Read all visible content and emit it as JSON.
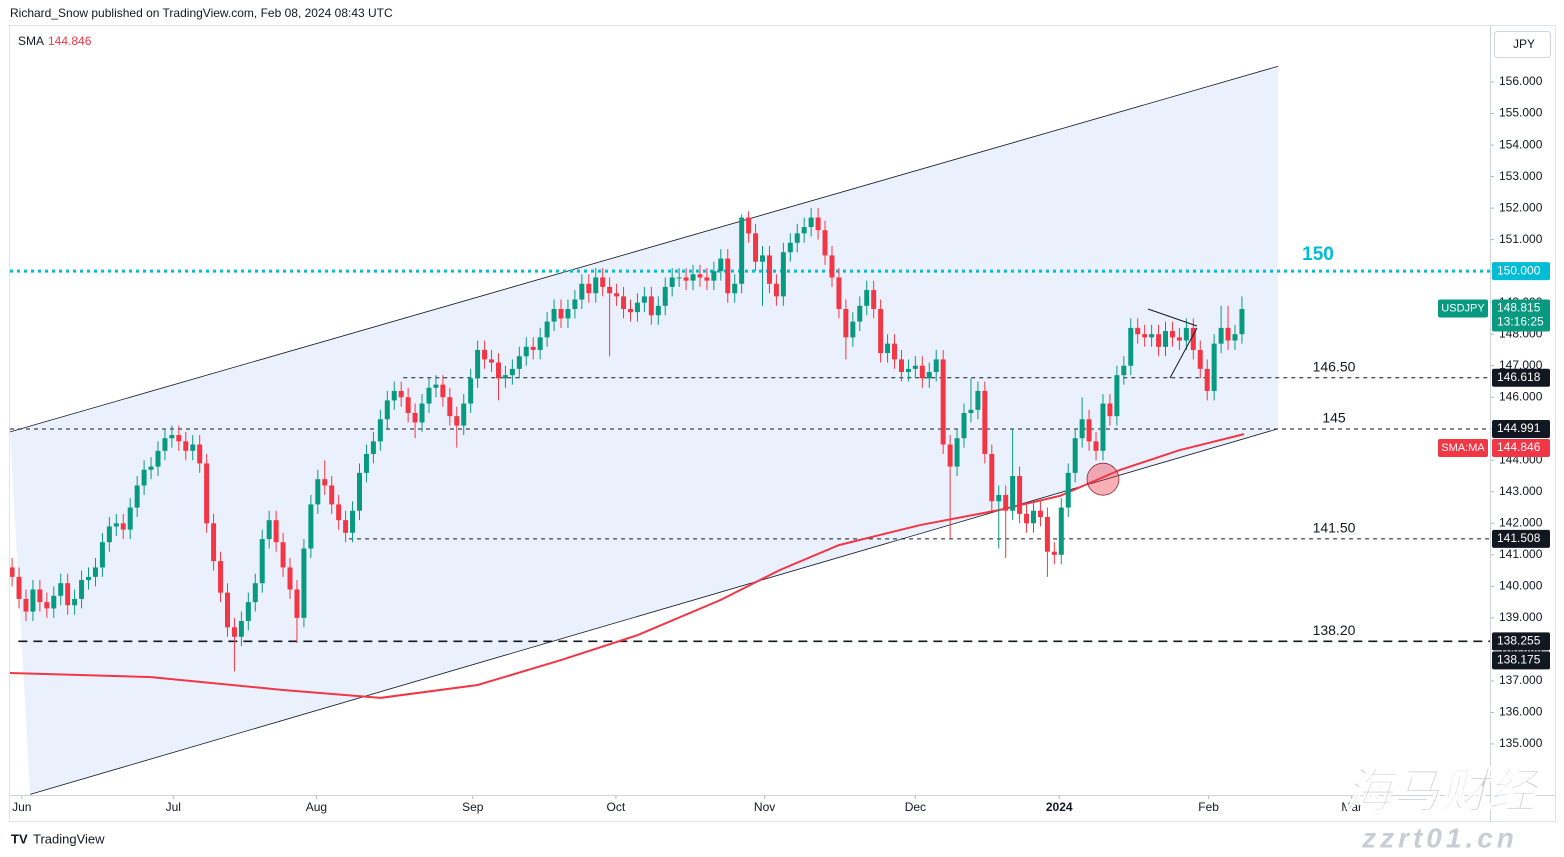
{
  "header": "Richard_Snow published on TradingView.com, Feb 08, 2024 08:43 UTC",
  "footer": {
    "logo": "TradingView"
  },
  "watermark": {
    "title": "海马财经",
    "url": "zzrt01.cn"
  },
  "chart_data": {
    "type": "candlestick",
    "symbol": "USDJPY",
    "currency": "JPY",
    "last_price": 148.815,
    "countdown": "13:16:25",
    "up_color": "#089981",
    "down_color": "#f23645",
    "indicator": {
      "name": "SMA",
      "value": 144.846,
      "axis_label": "SMA:MA",
      "color": "#f23645",
      "x": [
        -0.3,
        20,
        39,
        53,
        67,
        79,
        90,
        102,
        110.5,
        119,
        130.6,
        142,
        150.8,
        159.4,
        168,
        177.3
      ],
      "values": [
        137.25,
        137.12,
        136.71,
        136.46,
        136.87,
        137.66,
        138.45,
        139.57,
        140.52,
        141.31,
        141.94,
        142.42,
        142.87,
        143.69,
        144.32,
        144.83
      ]
    },
    "xlim": [
      -0.3,
      212.7
    ],
    "xticks": [
      {
        "value": 1.4,
        "label": "Jun"
      },
      {
        "value": 23.2,
        "label": "Jul"
      },
      {
        "value": 43.8,
        "label": "Aug"
      },
      {
        "value": 66.3,
        "label": "Sep"
      },
      {
        "value": 86.9,
        "label": "Oct"
      },
      {
        "value": 108.3,
        "label": "Nov"
      },
      {
        "value": 130,
        "label": "Dec"
      },
      {
        "value": 150.7,
        "label": "2024"
      },
      {
        "value": 172.2,
        "label": "Feb"
      },
      {
        "value": 192.8,
        "label": "Mar"
      }
    ],
    "ylim": [
      133.38,
      157.81
    ],
    "yticks": [
      {
        "value": 135,
        "label": "135.000"
      },
      {
        "value": 136,
        "label": "136.000"
      },
      {
        "value": 137,
        "label": "137.000"
      },
      {
        "value": 138,
        "label": "138.000"
      },
      {
        "value": 139,
        "label": "139.000"
      },
      {
        "value": 140,
        "label": "140.000"
      },
      {
        "value": 141,
        "label": "141.000"
      },
      {
        "value": 142,
        "label": "142.000"
      },
      {
        "value": 143,
        "label": "143.000"
      },
      {
        "value": 144,
        "label": "144.000"
      },
      {
        "value": 145,
        "label": "145.000"
      },
      {
        "value": 146,
        "label": "146.000"
      },
      {
        "value": 147,
        "label": "147.000"
      },
      {
        "value": 148,
        "label": "148.000"
      },
      {
        "value": 149,
        "label": "149.000"
      },
      {
        "value": 150,
        "label": "150.000"
      },
      {
        "value": 151,
        "label": "151.000"
      },
      {
        "value": 152,
        "label": "152.000"
      },
      {
        "value": 153,
        "label": "153.000"
      },
      {
        "value": 154,
        "label": "154.000"
      },
      {
        "value": 155,
        "label": "155.000"
      },
      {
        "value": 156,
        "label": "156.000"
      }
    ],
    "grid": false,
    "channel": {
      "upper": [
        [
          -0.3,
          144.9
        ],
        [
          182.2,
          156.5
        ]
      ],
      "lower": [
        [
          2.6,
          133.4
        ],
        [
          182.2,
          145.0
        ]
      ],
      "fill": "#ebf1fc",
      "color": "#131722"
    },
    "levels": [
      {
        "value": 150,
        "label": "150",
        "axis_label": "150.000",
        "start": -0.3,
        "style": "dotted",
        "color": "#00bcd4"
      },
      {
        "value": 146.618,
        "label": "146.50",
        "start": 56.3,
        "style": "dashed",
        "color": "#131722"
      },
      {
        "value": 144.991,
        "label": "145",
        "start": -0.3,
        "style": "dashed",
        "color": "#131722"
      },
      {
        "value": 141.508,
        "label": "141.50",
        "start": 48.5,
        "style": "dashed",
        "color": "#131722"
      },
      {
        "value": 138.255,
        "label": "138.20",
        "start": 0.9,
        "style": "longdash",
        "color": "#131722"
      }
    ],
    "extra_axis_labels": [
      138.175
    ],
    "highlight": {
      "x": 157,
      "value": 143.4,
      "color": "#f23645"
    },
    "ohlc": [
      [
        140.6,
        140.9,
        140.0,
        140.3
      ],
      [
        140.3,
        140.6,
        139.3,
        139.6
      ],
      [
        139.6,
        139.9,
        138.9,
        139.2
      ],
      [
        139.2,
        140.2,
        138.9,
        139.9
      ],
      [
        139.9,
        140.2,
        139.2,
        139.5
      ],
      [
        139.5,
        139.8,
        139.0,
        139.3
      ],
      [
        139.3,
        140.0,
        139.0,
        139.7
      ],
      [
        139.7,
        140.4,
        139.4,
        140.1
      ],
      [
        140.1,
        140.4,
        139.1,
        139.4
      ],
      [
        139.4,
        139.9,
        139.1,
        139.6
      ],
      [
        139.6,
        140.5,
        139.3,
        140.2
      ],
      [
        140.2,
        140.6,
        139.9,
        140.3
      ],
      [
        140.3,
        140.9,
        140.0,
        140.6
      ],
      [
        140.6,
        141.7,
        140.3,
        141.4
      ],
      [
        141.4,
        142.2,
        141.1,
        141.9
      ],
      [
        141.9,
        142.3,
        141.6,
        142.0
      ],
      [
        142.0,
        142.3,
        141.5,
        141.8
      ],
      [
        141.8,
        142.8,
        141.5,
        142.5
      ],
      [
        142.5,
        143.5,
        142.2,
        143.2
      ],
      [
        143.2,
        144.0,
        142.9,
        143.7
      ],
      [
        143.7,
        144.1,
        143.4,
        143.8
      ],
      [
        143.8,
        144.6,
        143.5,
        144.3
      ],
      [
        144.3,
        145.0,
        144.0,
        144.7
      ],
      [
        144.7,
        145.1,
        144.4,
        144.8
      ],
      [
        144.8,
        145.1,
        144.3,
        144.6
      ],
      [
        144.6,
        144.9,
        144.0,
        144.3
      ],
      [
        144.3,
        144.8,
        144.0,
        144.5
      ],
      [
        144.5,
        144.8,
        143.6,
        143.9
      ],
      [
        143.9,
        144.2,
        141.7,
        142.0
      ],
      [
        142.0,
        142.3,
        140.5,
        140.8
      ],
      [
        140.8,
        141.1,
        139.5,
        139.8
      ],
      [
        139.8,
        140.1,
        138.4,
        138.7
      ],
      [
        138.7,
        139.0,
        137.3,
        138.4
      ],
      [
        138.4,
        139.2,
        138.1,
        138.9
      ],
      [
        138.9,
        139.8,
        138.6,
        139.5
      ],
      [
        139.5,
        140.4,
        139.2,
        140.1
      ],
      [
        140.1,
        141.8,
        139.8,
        141.5
      ],
      [
        141.5,
        142.4,
        141.2,
        142.1
      ],
      [
        142.1,
        142.4,
        141.1,
        141.4
      ],
      [
        141.4,
        141.7,
        140.3,
        140.6
      ],
      [
        140.6,
        140.9,
        139.6,
        139.9
      ],
      [
        139.9,
        140.2,
        138.2,
        139.0
      ],
      [
        139.0,
        141.5,
        138.7,
        141.2
      ],
      [
        141.2,
        142.9,
        140.9,
        142.6
      ],
      [
        142.6,
        143.7,
        142.3,
        143.4
      ],
      [
        143.4,
        144.0,
        142.9,
        143.2
      ],
      [
        143.2,
        143.5,
        142.3,
        142.6
      ],
      [
        142.6,
        142.9,
        141.8,
        142.1
      ],
      [
        142.1,
        142.4,
        141.4,
        141.7
      ],
      [
        141.7,
        142.7,
        141.4,
        142.4
      ],
      [
        142.4,
        143.9,
        142.1,
        143.6
      ],
      [
        143.6,
        144.5,
        143.3,
        144.2
      ],
      [
        144.2,
        144.9,
        143.9,
        144.6
      ],
      [
        144.6,
        145.6,
        144.3,
        145.3
      ],
      [
        145.3,
        146.2,
        145.0,
        145.9
      ],
      [
        145.9,
        146.5,
        145.6,
        146.2
      ],
      [
        146.2,
        146.5,
        145.7,
        146.0
      ],
      [
        146.0,
        146.3,
        145.2,
        145.5
      ],
      [
        145.5,
        145.8,
        144.7,
        145.2
      ],
      [
        145.2,
        146.1,
        144.9,
        145.8
      ],
      [
        145.8,
        146.6,
        145.5,
        146.3
      ],
      [
        146.3,
        146.7,
        146.0,
        146.4
      ],
      [
        146.4,
        146.7,
        145.7,
        146.0
      ],
      [
        146.0,
        146.3,
        145.1,
        145.4
      ],
      [
        145.4,
        145.7,
        144.4,
        145.1
      ],
      [
        145.1,
        146.1,
        144.8,
        145.8
      ],
      [
        145.8,
        146.9,
        145.5,
        146.6
      ],
      [
        146.6,
        147.8,
        146.3,
        147.5
      ],
      [
        147.5,
        147.8,
        146.9,
        147.2
      ],
      [
        147.2,
        147.5,
        146.8,
        147.1
      ],
      [
        147.1,
        147.4,
        145.9,
        146.6
      ],
      [
        146.6,
        147.0,
        146.3,
        146.7
      ],
      [
        146.7,
        147.2,
        146.4,
        146.9
      ],
      [
        146.9,
        147.6,
        146.6,
        147.3
      ],
      [
        147.3,
        147.9,
        147.0,
        147.6
      ],
      [
        147.6,
        147.9,
        147.2,
        147.5
      ],
      [
        147.5,
        148.2,
        147.2,
        147.9
      ],
      [
        147.9,
        148.7,
        147.6,
        148.4
      ],
      [
        148.4,
        149.1,
        148.1,
        148.8
      ],
      [
        148.8,
        149.1,
        148.2,
        148.5
      ],
      [
        148.5,
        149.1,
        148.2,
        148.8
      ],
      [
        148.8,
        149.4,
        148.5,
        149.1
      ],
      [
        149.1,
        149.9,
        148.8,
        149.6
      ],
      [
        149.6,
        149.9,
        149.0,
        149.3
      ],
      [
        149.3,
        150.1,
        149.0,
        149.8
      ],
      [
        149.8,
        150.1,
        149.2,
        149.5
      ],
      [
        149.5,
        149.8,
        147.3,
        149.3
      ],
      [
        149.3,
        149.6,
        148.9,
        149.2
      ],
      [
        149.2,
        149.5,
        148.5,
        148.8
      ],
      [
        148.8,
        149.1,
        148.4,
        148.7
      ],
      [
        148.7,
        149.3,
        148.4,
        149.0
      ],
      [
        149.0,
        149.5,
        148.7,
        149.2
      ],
      [
        149.2,
        149.5,
        148.3,
        148.6
      ],
      [
        148.6,
        149.2,
        148.3,
        148.9
      ],
      [
        148.9,
        149.8,
        148.6,
        149.5
      ],
      [
        149.5,
        150.1,
        149.2,
        149.8
      ],
      [
        149.8,
        150.1,
        149.5,
        149.8
      ],
      [
        149.8,
        150.1,
        149.4,
        149.7
      ],
      [
        149.7,
        150.2,
        149.4,
        149.9
      ],
      [
        149.9,
        150.2,
        149.5,
        149.8
      ],
      [
        149.8,
        150.1,
        149.4,
        149.7
      ],
      [
        149.7,
        150.3,
        149.4,
        150.0
      ],
      [
        150.0,
        150.7,
        149.7,
        150.4
      ],
      [
        150.4,
        150.7,
        149.0,
        149.3
      ],
      [
        149.3,
        149.9,
        149.0,
        149.6
      ],
      [
        149.6,
        151.8,
        149.3,
        151.7
      ],
      [
        151.7,
        151.9,
        150.9,
        151.2
      ],
      [
        151.2,
        151.5,
        150.0,
        150.3
      ],
      [
        150.3,
        150.8,
        148.9,
        150.5
      ],
      [
        150.5,
        150.8,
        149.3,
        149.6
      ],
      [
        149.6,
        149.9,
        148.9,
        149.2
      ],
      [
        149.2,
        150.9,
        148.9,
        150.6
      ],
      [
        150.6,
        151.2,
        150.3,
        150.9
      ],
      [
        150.9,
        151.5,
        150.6,
        151.2
      ],
      [
        151.2,
        151.7,
        150.9,
        151.4
      ],
      [
        151.4,
        152.0,
        151.1,
        151.7
      ],
      [
        151.7,
        152.0,
        151.0,
        151.3
      ],
      [
        151.3,
        151.6,
        150.2,
        150.5
      ],
      [
        150.5,
        150.8,
        149.5,
        149.8
      ],
      [
        149.8,
        150.1,
        148.5,
        148.8
      ],
      [
        148.8,
        149.1,
        147.2,
        147.9
      ],
      [
        147.9,
        148.7,
        147.6,
        148.4
      ],
      [
        148.4,
        149.2,
        148.1,
        148.9
      ],
      [
        148.9,
        149.7,
        148.6,
        149.4
      ],
      [
        149.4,
        149.7,
        148.5,
        148.8
      ],
      [
        148.8,
        149.1,
        147.1,
        147.4
      ],
      [
        147.4,
        148.0,
        147.1,
        147.7
      ],
      [
        147.7,
        148.0,
        146.9,
        147.2
      ],
      [
        147.2,
        147.5,
        146.5,
        146.8
      ],
      [
        146.8,
        147.2,
        146.5,
        146.9
      ],
      [
        146.9,
        147.3,
        146.6,
        147.0
      ],
      [
        147.0,
        147.3,
        146.3,
        146.6
      ],
      [
        146.6,
        147.1,
        146.3,
        146.8
      ],
      [
        146.8,
        147.5,
        146.5,
        147.2
      ],
      [
        147.2,
        147.5,
        144.2,
        144.5
      ],
      [
        144.5,
        144.8,
        141.5,
        143.8
      ],
      [
        143.8,
        145.0,
        143.5,
        144.7
      ],
      [
        144.7,
        145.8,
        144.4,
        145.5
      ],
      [
        145.5,
        146.6,
        145.2,
        145.6
      ],
      [
        145.6,
        146.5,
        145.3,
        146.2
      ],
      [
        146.2,
        146.5,
        143.9,
        144.2
      ],
      [
        144.2,
        144.5,
        142.4,
        142.7
      ],
      [
        142.7,
        143.2,
        141.2,
        142.9
      ],
      [
        142.9,
        143.2,
        140.9,
        142.4
      ],
      [
        142.4,
        145.0,
        142.1,
        143.5
      ],
      [
        143.5,
        143.8,
        142.0,
        142.3
      ],
      [
        142.3,
        142.6,
        141.7,
        142.0
      ],
      [
        142.0,
        142.7,
        141.7,
        142.4
      ],
      [
        142.4,
        142.7,
        141.9,
        142.2
      ],
      [
        142.2,
        142.5,
        140.3,
        141.1
      ],
      [
        141.1,
        141.4,
        140.7,
        141.0
      ],
      [
        141.0,
        142.8,
        140.7,
        142.5
      ],
      [
        142.5,
        143.9,
        142.2,
        143.6
      ],
      [
        143.6,
        145.0,
        143.3,
        144.7
      ],
      [
        144.7,
        146.0,
        144.4,
        145.3
      ],
      [
        145.3,
        145.6,
        144.3,
        144.6
      ],
      [
        144.6,
        144.9,
        144.0,
        144.3
      ],
      [
        144.3,
        146.1,
        144.0,
        145.8
      ],
      [
        145.8,
        146.1,
        145.1,
        145.4
      ],
      [
        145.4,
        147.0,
        145.1,
        146.7
      ],
      [
        146.7,
        147.3,
        146.4,
        147.0
      ],
      [
        147.0,
        148.5,
        146.7,
        148.2
      ],
      [
        148.2,
        148.5,
        147.7,
        148.0
      ],
      [
        148.0,
        148.3,
        147.6,
        147.9
      ],
      [
        147.9,
        148.3,
        147.6,
        148.0
      ],
      [
        148.0,
        148.3,
        147.3,
        147.6
      ],
      [
        147.6,
        148.4,
        147.3,
        148.1
      ],
      [
        148.1,
        148.4,
        147.6,
        147.9
      ],
      [
        147.9,
        148.2,
        147.5,
        147.8
      ],
      [
        147.8,
        148.5,
        147.5,
        148.2
      ],
      [
        148.2,
        148.5,
        147.2,
        147.5
      ],
      [
        147.5,
        147.8,
        146.6,
        146.9
      ],
      [
        146.9,
        147.2,
        145.9,
        146.2
      ],
      [
        146.2,
        148.0,
        145.9,
        147.7
      ],
      [
        147.7,
        148.9,
        147.4,
        148.2
      ],
      [
        148.2,
        148.9,
        147.5,
        147.8
      ],
      [
        147.8,
        148.3,
        147.5,
        148.0
      ],
      [
        148.0,
        149.2,
        147.7,
        148.8
      ]
    ]
  }
}
